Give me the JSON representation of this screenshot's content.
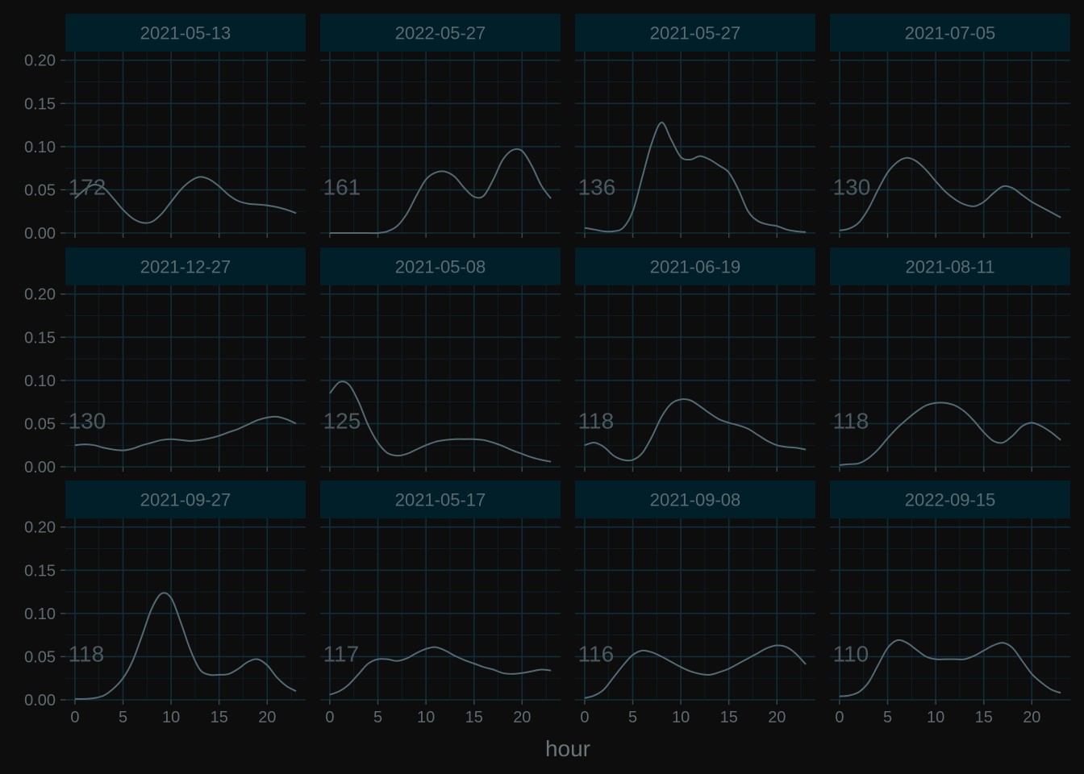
{
  "chart_data": {
    "type": "line",
    "layout": "facet-grid 3x4",
    "xlabel": "hour",
    "ylabel": "",
    "xlim": [
      -1,
      24
    ],
    "ylim": [
      0,
      0.21
    ],
    "x_ticks": [
      0,
      5,
      10,
      15,
      20
    ],
    "y_ticks": [
      0.0,
      0.05,
      0.1,
      0.15,
      0.2
    ],
    "y_tick_labels": [
      "0.00",
      "0.05",
      "0.10",
      "0.15",
      "0.20"
    ],
    "grid": true,
    "colors": {
      "background": "#0d0d0d",
      "strip": "#001f28",
      "line": "#526a74",
      "grid": "#0e2e3a"
    },
    "panels": [
      {
        "label": "2021-05-13",
        "count": "172",
        "x": [
          0,
          1,
          2,
          3,
          4,
          5,
          6,
          7,
          8,
          9,
          10,
          11,
          12,
          13,
          14,
          15,
          16,
          17,
          18,
          19,
          20,
          21,
          22,
          23
        ],
        "values": [
          0.04,
          0.05,
          0.056,
          0.052,
          0.04,
          0.027,
          0.017,
          0.012,
          0.013,
          0.022,
          0.036,
          0.05,
          0.06,
          0.065,
          0.062,
          0.054,
          0.044,
          0.037,
          0.034,
          0.033,
          0.032,
          0.03,
          0.027,
          0.023
        ]
      },
      {
        "label": "2022-05-27",
        "count": "161",
        "x": [
          0,
          1,
          2,
          3,
          4,
          5,
          6,
          7,
          8,
          9,
          10,
          11,
          12,
          13,
          14,
          15,
          16,
          17,
          18,
          19,
          20,
          21,
          22,
          23
        ],
        "values": [
          0.0,
          0.0,
          0.0,
          0.0,
          0.0,
          0.0,
          0.002,
          0.008,
          0.022,
          0.043,
          0.062,
          0.07,
          0.071,
          0.065,
          0.052,
          0.042,
          0.043,
          0.062,
          0.085,
          0.096,
          0.095,
          0.078,
          0.055,
          0.04
        ]
      },
      {
        "label": "2021-05-27",
        "count": "136",
        "x": [
          0,
          1,
          2,
          3,
          4,
          5,
          6,
          7,
          8,
          9,
          10,
          11,
          12,
          13,
          14,
          15,
          16,
          17,
          18,
          19,
          20,
          21,
          22,
          23
        ],
        "values": [
          0.006,
          0.004,
          0.002,
          0.002,
          0.006,
          0.025,
          0.065,
          0.105,
          0.128,
          0.108,
          0.088,
          0.085,
          0.089,
          0.085,
          0.078,
          0.07,
          0.05,
          0.025,
          0.014,
          0.01,
          0.008,
          0.004,
          0.002,
          0.001
        ]
      },
      {
        "label": "2021-07-05",
        "count": "130",
        "x": [
          0,
          1,
          2,
          3,
          4,
          5,
          6,
          7,
          8,
          9,
          10,
          11,
          12,
          13,
          14,
          15,
          16,
          17,
          18,
          19,
          20,
          21,
          22,
          23
        ],
        "values": [
          0.003,
          0.005,
          0.012,
          0.028,
          0.05,
          0.07,
          0.082,
          0.087,
          0.083,
          0.073,
          0.06,
          0.048,
          0.039,
          0.033,
          0.031,
          0.036,
          0.046,
          0.054,
          0.052,
          0.044,
          0.036,
          0.03,
          0.024,
          0.018
        ]
      },
      {
        "label": "2021-12-27",
        "count": "130",
        "x": [
          0,
          1,
          2,
          3,
          4,
          5,
          6,
          7,
          8,
          9,
          10,
          11,
          12,
          13,
          14,
          15,
          16,
          17,
          18,
          19,
          20,
          21,
          22,
          23
        ],
        "values": [
          0.025,
          0.026,
          0.025,
          0.022,
          0.02,
          0.019,
          0.021,
          0.025,
          0.028,
          0.031,
          0.032,
          0.031,
          0.03,
          0.031,
          0.033,
          0.036,
          0.04,
          0.044,
          0.049,
          0.054,
          0.057,
          0.058,
          0.055,
          0.05
        ]
      },
      {
        "label": "2021-05-08",
        "count": "125",
        "x": [
          0,
          1,
          2,
          3,
          4,
          5,
          6,
          7,
          8,
          9,
          10,
          11,
          12,
          13,
          14,
          15,
          16,
          17,
          18,
          19,
          20,
          21,
          22,
          23
        ],
        "values": [
          0.085,
          0.098,
          0.095,
          0.075,
          0.048,
          0.028,
          0.016,
          0.013,
          0.015,
          0.02,
          0.025,
          0.029,
          0.031,
          0.032,
          0.032,
          0.032,
          0.031,
          0.028,
          0.024,
          0.019,
          0.015,
          0.011,
          0.008,
          0.006
        ]
      },
      {
        "label": "2021-06-19",
        "count": "118",
        "x": [
          0,
          1,
          2,
          3,
          4,
          5,
          6,
          7,
          8,
          9,
          10,
          11,
          12,
          13,
          14,
          15,
          16,
          17,
          18,
          19,
          20,
          21,
          22,
          23
        ],
        "values": [
          0.025,
          0.028,
          0.023,
          0.013,
          0.008,
          0.008,
          0.016,
          0.035,
          0.058,
          0.073,
          0.078,
          0.077,
          0.07,
          0.062,
          0.055,
          0.051,
          0.048,
          0.044,
          0.037,
          0.03,
          0.025,
          0.023,
          0.022,
          0.02
        ]
      },
      {
        "label": "2021-08-11",
        "count": "118",
        "x": [
          0,
          1,
          2,
          3,
          4,
          5,
          6,
          7,
          8,
          9,
          10,
          11,
          12,
          13,
          14,
          15,
          16,
          17,
          18,
          19,
          20,
          21,
          22,
          23
        ],
        "values": [
          0.002,
          0.003,
          0.004,
          0.01,
          0.02,
          0.033,
          0.045,
          0.055,
          0.064,
          0.071,
          0.074,
          0.074,
          0.071,
          0.064,
          0.053,
          0.04,
          0.03,
          0.028,
          0.036,
          0.047,
          0.051,
          0.047,
          0.04,
          0.031
        ]
      },
      {
        "label": "2021-09-27",
        "count": "118",
        "x": [
          0,
          1,
          2,
          3,
          4,
          5,
          6,
          7,
          8,
          9,
          10,
          11,
          12,
          13,
          14,
          15,
          16,
          17,
          18,
          19,
          20,
          21,
          22,
          23
        ],
        "values": [
          0.001,
          0.001,
          0.002,
          0.005,
          0.013,
          0.025,
          0.045,
          0.075,
          0.106,
          0.123,
          0.118,
          0.09,
          0.058,
          0.035,
          0.029,
          0.029,
          0.03,
          0.036,
          0.044,
          0.047,
          0.04,
          0.026,
          0.016,
          0.01
        ]
      },
      {
        "label": "2021-05-17",
        "count": "117",
        "x": [
          0,
          1,
          2,
          3,
          4,
          5,
          6,
          7,
          8,
          9,
          10,
          11,
          12,
          13,
          14,
          15,
          16,
          17,
          18,
          19,
          20,
          21,
          22,
          23
        ],
        "values": [
          0.006,
          0.01,
          0.018,
          0.03,
          0.042,
          0.047,
          0.047,
          0.045,
          0.048,
          0.054,
          0.059,
          0.061,
          0.057,
          0.051,
          0.046,
          0.042,
          0.038,
          0.035,
          0.031,
          0.03,
          0.031,
          0.033,
          0.035,
          0.034
        ]
      },
      {
        "label": "2021-09-08",
        "count": "116",
        "x": [
          0,
          1,
          2,
          3,
          4,
          5,
          6,
          7,
          8,
          9,
          10,
          11,
          12,
          13,
          14,
          15,
          16,
          17,
          18,
          19,
          20,
          21,
          22,
          23
        ],
        "values": [
          0.002,
          0.005,
          0.012,
          0.026,
          0.04,
          0.052,
          0.057,
          0.055,
          0.05,
          0.044,
          0.038,
          0.033,
          0.03,
          0.029,
          0.032,
          0.036,
          0.042,
          0.048,
          0.054,
          0.06,
          0.063,
          0.061,
          0.053,
          0.041
        ]
      },
      {
        "label": "2022-09-15",
        "count": "110",
        "x": [
          0,
          1,
          2,
          3,
          4,
          5,
          6,
          7,
          8,
          9,
          10,
          11,
          12,
          13,
          14,
          15,
          16,
          17,
          18,
          19,
          20,
          21,
          22,
          23
        ],
        "values": [
          0.004,
          0.005,
          0.009,
          0.02,
          0.04,
          0.06,
          0.069,
          0.066,
          0.058,
          0.05,
          0.047,
          0.047,
          0.047,
          0.047,
          0.051,
          0.057,
          0.063,
          0.066,
          0.06,
          0.045,
          0.03,
          0.02,
          0.012,
          0.008
        ]
      }
    ]
  }
}
